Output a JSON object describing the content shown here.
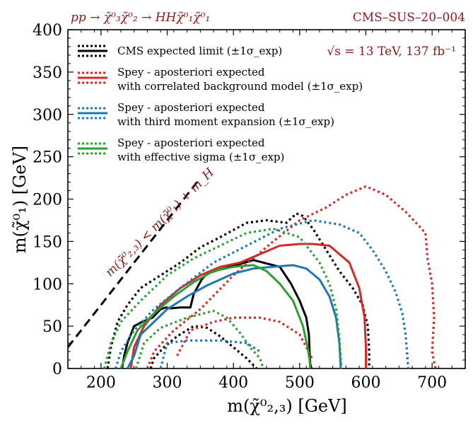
{
  "chart_data": {
    "type": "line",
    "title_left": "pp → χ̃⁰₃χ̃⁰₂ → HHχ̃⁰₁χ̃⁰₁",
    "title_right": "CMS–SUS–20–004",
    "energy_label": "√s = 13 TeV, 137 fb⁻¹",
    "xlabel": "m(χ̃⁰₂,₃) [GeV]",
    "ylabel": "m(χ̃⁰₁) [GeV]",
    "xlim": [
      150,
      750
    ],
    "ylim": [
      0,
      400
    ],
    "xticks": [
      200,
      300,
      400,
      500,
      600,
      700
    ],
    "yticks": [
      0,
      50,
      100,
      150,
      200,
      250,
      300,
      350,
      400
    ],
    "grid": false,
    "legend_position": "top-left",
    "diagonal_label": "m(χ̃⁰₂,₃) < m(χ̃⁰₁) + m_H",
    "diagonal_line": {
      "x": [
        150,
        350
      ],
      "y": [
        25,
        225
      ]
    },
    "colors": {
      "cms": "#000000",
      "correlated": "#d62728",
      "third_moment": "#1f77b4",
      "effective_sigma": "#2ca02c",
      "annotation": "#8b1a1a"
    },
    "legend": [
      {
        "key": "cms",
        "line1": "CMS expected limit (±1σ_exp)",
        "line2": ""
      },
      {
        "key": "correlated",
        "line1": "Spey - aposteriori expected",
        "line2": "with correlated background model (±1σ_exp)"
      },
      {
        "key": "third_moment",
        "line1": "Spey - aposteriori expected",
        "line2": "with third moment expansion (±1σ_exp)"
      },
      {
        "key": "effective_sigma",
        "line1": "Spey - aposteriori expected",
        "line2": "with effective sigma (±1σ_exp)"
      }
    ],
    "series": [
      {
        "key": "cms",
        "style": "solid",
        "x": [
          232,
          235,
          240,
          250,
          262,
          278,
          290,
          298,
          305,
          320,
          335,
          340,
          352,
          360,
          380,
          400,
          430,
          460,
          470,
          487,
          500,
          510,
          514,
          515,
          516,
          518
        ],
        "y": [
          0,
          15,
          30,
          50,
          55,
          60,
          70,
          72,
          71,
          72,
          72,
          88,
          105,
          112,
          117,
          121,
          128,
          122,
          120,
          100,
          80,
          60,
          40,
          20,
          5,
          0
        ]
      },
      {
        "key": "cms",
        "style": "dotted",
        "x": [
          210,
          215,
          225,
          240,
          260,
          290,
          320,
          350,
          380,
          420,
          450,
          480,
          495,
          505,
          520,
          540,
          560,
          580,
          595,
          603,
          605,
          605
        ],
        "y": [
          0,
          25,
          55,
          75,
          95,
          110,
          125,
          143,
          155,
          172,
          175,
          172,
          183,
          180,
          165,
          140,
          115,
          95,
          75,
          50,
          20,
          0
        ]
      },
      {
        "key": "cms",
        "style": "dotted",
        "x": [
          275,
          280,
          295,
          315,
          340,
          360,
          380,
          400,
          420,
          435
        ],
        "y": [
          0,
          12,
          25,
          38,
          50,
          48,
          38,
          25,
          12,
          0
        ]
      },
      {
        "key": "correlated",
        "style": "solid",
        "x": [
          245,
          250,
          265,
          290,
          320,
          350,
          380,
          410,
          440,
          470,
          500,
          520,
          545,
          575,
          590,
          598,
          600,
          600
        ],
        "y": [
          0,
          25,
          50,
          75,
          95,
          110,
          120,
          125,
          135,
          145,
          147,
          147,
          145,
          125,
          95,
          60,
          25,
          0
        ]
      },
      {
        "key": "correlated",
        "style": "dotted",
        "x": [
          270,
          280,
          310,
          350,
          400,
          460,
          500,
          540,
          570,
          600,
          630,
          660,
          690,
          693,
          700,
          703,
          700,
          705
        ],
        "y": [
          0,
          20,
          45,
          70,
          110,
          150,
          175,
          190,
          205,
          215,
          205,
          185,
          160,
          130,
          100,
          60,
          20,
          0
        ]
      },
      {
        "key": "correlated",
        "style": "dotted",
        "x": [
          315,
          335,
          370,
          400,
          440,
          470,
          500,
          520
        ],
        "y": [
          15,
          45,
          55,
          60,
          60,
          55,
          40,
          10
        ]
      },
      {
        "key": "third_moment",
        "style": "solid",
        "x": [
          240,
          250,
          260,
          280,
          300,
          330,
          360,
          400,
          430,
          460,
          490,
          510,
          530,
          545,
          555,
          560,
          562
        ],
        "y": [
          0,
          15,
          40,
          55,
          70,
          85,
          98,
          112,
          118,
          120,
          122,
          118,
          105,
          85,
          60,
          30,
          0
        ]
      },
      {
        "key": "third_moment",
        "style": "dotted",
        "x": [
          222,
          230,
          250,
          280,
          320,
          370,
          420,
          470,
          520,
          560,
          590,
          610,
          630,
          645,
          655,
          660,
          662,
          664
        ],
        "y": [
          0,
          20,
          45,
          70,
          95,
          125,
          145,
          165,
          175,
          170,
          160,
          140,
          115,
          90,
          65,
          40,
          20,
          0
        ]
      },
      {
        "key": "third_moment",
        "style": "dotted",
        "x": [
          290,
          300,
          330,
          380,
          420,
          440
        ],
        "y": [
          0,
          30,
          33,
          33,
          30,
          20
        ]
      },
      {
        "key": "effective_sigma",
        "style": "solid",
        "x": [
          230,
          240,
          255,
          280,
          310,
          340,
          370,
          400,
          430,
          450,
          470,
          490,
          505,
          512,
          515,
          516
        ],
        "y": [
          0,
          20,
          45,
          65,
          85,
          102,
          115,
          120,
          122,
          115,
          100,
          80,
          50,
          25,
          10,
          0
        ]
      },
      {
        "key": "effective_sigma",
        "style": "dotted",
        "x": [
          205,
          215,
          230,
          260,
          300,
          340,
          380,
          420,
          460,
          500,
          530,
          545,
          555,
          560,
          563
        ],
        "y": [
          0,
          30,
          55,
          80,
          110,
          130,
          145,
          160,
          165,
          155,
          125,
          100,
          70,
          35,
          0
        ]
      },
      {
        "key": "effective_sigma",
        "style": "dotted",
        "x": [
          253,
          265,
          290,
          330,
          370,
          390,
          410,
          425,
          440,
          445
        ],
        "y": [
          0,
          30,
          48,
          60,
          68,
          60,
          42,
          25,
          12,
          0
        ]
      }
    ]
  }
}
